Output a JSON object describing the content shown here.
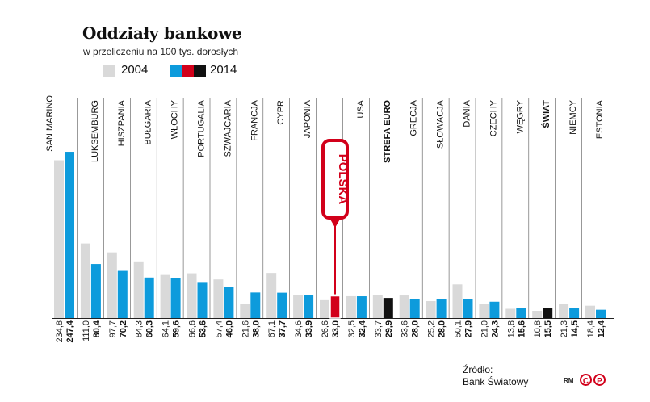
{
  "header": {
    "title": "Oddziały bankowe",
    "subtitle": "w przeliczeniu na 100 tys. dorosłych"
  },
  "legend": {
    "label_2004": "2004",
    "label_2014": "2014"
  },
  "source": {
    "line1": "Źródło:",
    "line2": "Bank Światowy"
  },
  "credit": {
    "initials": "RM",
    "logo_left": "C",
    "logo_right": "P"
  },
  "colors": {
    "v2004": "#d9d9d9",
    "v2014": "#0d9bdc",
    "poland": "#d2001a",
    "aggregate": "#111111",
    "logo": "#d2001a"
  },
  "chart_data": {
    "type": "bar",
    "title": "Oddziały bankowe",
    "subtitle": "w przeliczeniu na 100 tys. dorosłych",
    "series_names": [
      "2004",
      "2014"
    ],
    "ylim": [
      0,
      250
    ],
    "highlight": "POLSKA",
    "categories": [
      {
        "label": "SAN MARINO",
        "v2004": "234,8",
        "v2014": "247,4",
        "kind": "normal"
      },
      {
        "label": "LUKSEMBURG",
        "v2004": "111,0",
        "v2014": "80,4",
        "kind": "normal"
      },
      {
        "label": "HISZPANIA",
        "v2004": "97,7",
        "v2014": "70,2",
        "kind": "normal"
      },
      {
        "label": "BUŁGARIA",
        "v2004": "84,3",
        "v2014": "60,3",
        "kind": "normal"
      },
      {
        "label": "WŁOCHY",
        "v2004": "64,1",
        "v2014": "59,6",
        "kind": "normal"
      },
      {
        "label": "PORTUGALIA",
        "v2004": "66,6",
        "v2014": "53,6",
        "kind": "normal"
      },
      {
        "label": "SZWAJCARIA",
        "v2004": "57,4",
        "v2014": "46,0",
        "kind": "normal"
      },
      {
        "label": "FRANCJA",
        "v2004": "21,6",
        "v2014": "38,0",
        "kind": "normal"
      },
      {
        "label": "CYPR",
        "v2004": "67,1",
        "v2014": "37,7",
        "kind": "normal"
      },
      {
        "label": "JAPONIA",
        "v2004": "34,6",
        "v2014": "33,9",
        "kind": "normal"
      },
      {
        "label": "POLSKA",
        "v2004": "26,6",
        "v2014": "33,0",
        "kind": "poland"
      },
      {
        "label": "USA",
        "v2004": "32,5",
        "v2014": "32,4",
        "kind": "normal"
      },
      {
        "label": "STREFA EURO",
        "v2004": "33,7",
        "v2014": "29,9",
        "kind": "aggregate"
      },
      {
        "label": "GRECJA",
        "v2004": "33,6",
        "v2014": "28,0",
        "kind": "normal"
      },
      {
        "label": "SŁOWACJA",
        "v2004": "25,2",
        "v2014": "28,0",
        "kind": "normal"
      },
      {
        "label": "DANIA",
        "v2004": "50,1",
        "v2014": "27,9",
        "kind": "normal"
      },
      {
        "label": "CZECHY",
        "v2004": "21,0",
        "v2014": "24,3",
        "kind": "normal"
      },
      {
        "label": "WĘGRY",
        "v2004": "13,8",
        "v2014": "15,6",
        "kind": "normal"
      },
      {
        "label": "ŚWIAT",
        "v2004": "10,8",
        "v2014": "15,5",
        "kind": "aggregate"
      },
      {
        "label": "NIEMCY",
        "v2004": "21,3",
        "v2014": "14,5",
        "kind": "normal"
      },
      {
        "label": "ESTONIA",
        "v2004": "18,4",
        "v2014": "12,4",
        "kind": "normal"
      }
    ]
  }
}
